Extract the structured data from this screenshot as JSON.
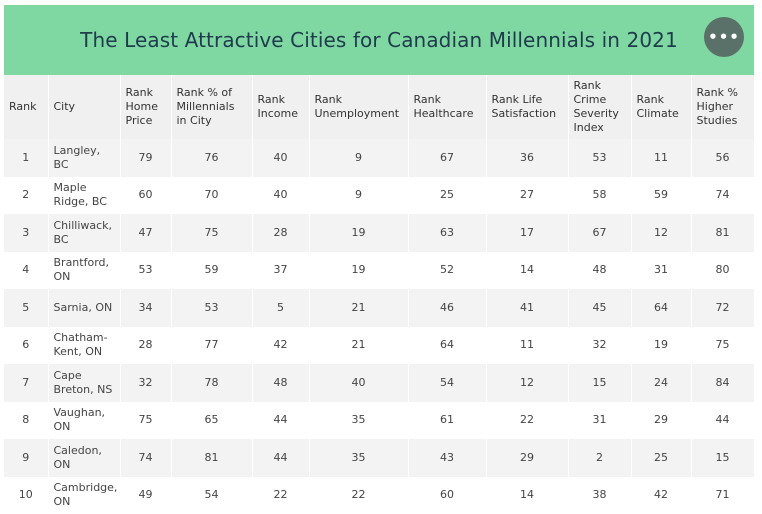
{
  "title": "The Least Attractive Cities for Canadian Millennials in 2021",
  "more_button_icon": "more-horizontal-icon",
  "columns": [
    [
      "Rank"
    ],
    [
      "City"
    ],
    [
      "Rank",
      "Home",
      "Price"
    ],
    [
      "Rank % of",
      "Millennials",
      "in City"
    ],
    [
      "Rank",
      "Income"
    ],
    [
      "Rank",
      "Unemployment"
    ],
    [
      "Rank",
      "Healthcare"
    ],
    [
      "Rank Life",
      "Satisfaction"
    ],
    [
      "Rank",
      "Crime",
      "Severity",
      "Index"
    ],
    [
      "Rank",
      "Climate"
    ],
    [
      "Rank %",
      "Higher",
      "Studies"
    ]
  ],
  "rows": [
    {
      "rank": "1",
      "city": [
        "Langley,",
        "BC"
      ],
      "home_price": "79",
      "millennials": "76",
      "income": "40",
      "unemployment": "9",
      "healthcare": "67",
      "life_satisfaction": "36",
      "crime": "53",
      "climate": "11",
      "higher_studies": "56"
    },
    {
      "rank": "2",
      "city": [
        "Maple",
        "Ridge, BC"
      ],
      "home_price": "60",
      "millennials": "70",
      "income": "40",
      "unemployment": "9",
      "healthcare": "25",
      "life_satisfaction": "27",
      "crime": "58",
      "climate": "59",
      "higher_studies": "74"
    },
    {
      "rank": "3",
      "city": [
        "Chilliwack,",
        "BC"
      ],
      "home_price": "47",
      "millennials": "75",
      "income": "28",
      "unemployment": "19",
      "healthcare": "63",
      "life_satisfaction": "17",
      "crime": "67",
      "climate": "12",
      "higher_studies": "81"
    },
    {
      "rank": "4",
      "city": [
        "Brantford,",
        "ON"
      ],
      "home_price": "53",
      "millennials": "59",
      "income": "37",
      "unemployment": "19",
      "healthcare": "52",
      "life_satisfaction": "14",
      "crime": "48",
      "climate": "31",
      "higher_studies": "80"
    },
    {
      "rank": "5",
      "city": [
        "Sarnia, ON"
      ],
      "home_price": "34",
      "millennials": "53",
      "income": "5",
      "unemployment": "21",
      "healthcare": "46",
      "life_satisfaction": "41",
      "crime": "45",
      "climate": "64",
      "higher_studies": "72"
    },
    {
      "rank": "6",
      "city": [
        "Chatham-",
        "Kent, ON"
      ],
      "home_price": "28",
      "millennials": "77",
      "income": "42",
      "unemployment": "21",
      "healthcare": "64",
      "life_satisfaction": "11",
      "crime": "32",
      "climate": "19",
      "higher_studies": "75"
    },
    {
      "rank": "7",
      "city": [
        "Cape",
        "Breton, NS"
      ],
      "home_price": "32",
      "millennials": "78",
      "income": "48",
      "unemployment": "40",
      "healthcare": "54",
      "life_satisfaction": "12",
      "crime": "15",
      "climate": "24",
      "higher_studies": "84"
    },
    {
      "rank": "8",
      "city": [
        "Vaughan,",
        "ON"
      ],
      "home_price": "75",
      "millennials": "65",
      "income": "44",
      "unemployment": "35",
      "healthcare": "61",
      "life_satisfaction": "22",
      "crime": "31",
      "climate": "29",
      "higher_studies": "44"
    },
    {
      "rank": "9",
      "city": [
        "Caledon,",
        "ON"
      ],
      "home_price": "74",
      "millennials": "81",
      "income": "44",
      "unemployment": "35",
      "healthcare": "43",
      "life_satisfaction": "29",
      "crime": "2",
      "climate": "25",
      "higher_studies": "15"
    },
    {
      "rank": "10",
      "city": [
        "Cambridge,",
        "ON"
      ],
      "home_price": "49",
      "millennials": "54",
      "income": "22",
      "unemployment": "22",
      "healthcare": "60",
      "life_satisfaction": "14",
      "crime": "38",
      "climate": "42",
      "higher_studies": "71"
    }
  ]
}
